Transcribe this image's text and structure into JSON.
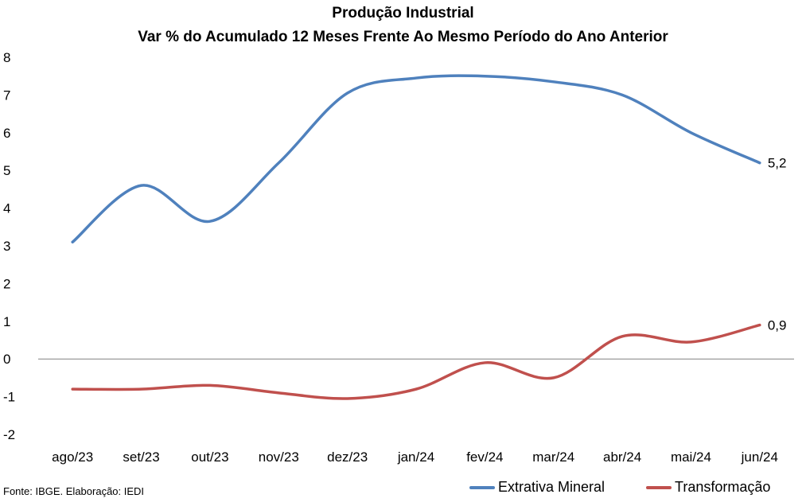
{
  "chart_data": {
    "type": "line",
    "title": "Produção Industrial",
    "subtitle": "Var % do Acumulado 12 Meses Frente Ao Mesmo Período do Ano Anterior",
    "categories": [
      "ago/23",
      "set/23",
      "out/23",
      "nov/23",
      "dez/23",
      "jan/24",
      "fev/24",
      "mar/24",
      "abr/24",
      "mai/24",
      "jun/24"
    ],
    "series": [
      {
        "name": "Extrativa Mineral",
        "color": "#4f81bd",
        "values": [
          3.1,
          4.6,
          3.65,
          5.2,
          7.05,
          7.45,
          7.5,
          7.35,
          7.0,
          6.0,
          5.2
        ],
        "end_label": "5,2"
      },
      {
        "name": "Transformação",
        "color": "#c0504d",
        "values": [
          -0.8,
          -0.8,
          -0.7,
          -0.9,
          -1.05,
          -0.8,
          -0.1,
          -0.5,
          0.6,
          0.45,
          0.9
        ],
        "end_label": "0,9"
      }
    ],
    "ylim": [
      -2,
      8
    ],
    "yticks": [
      "-2",
      "-1",
      "0",
      "1",
      "2",
      "3",
      "4",
      "5",
      "6",
      "7",
      "8"
    ],
    "grid": false,
    "legend": "bottom-right",
    "source": "Fonte: IBGE. Elaboração: IEDI"
  }
}
